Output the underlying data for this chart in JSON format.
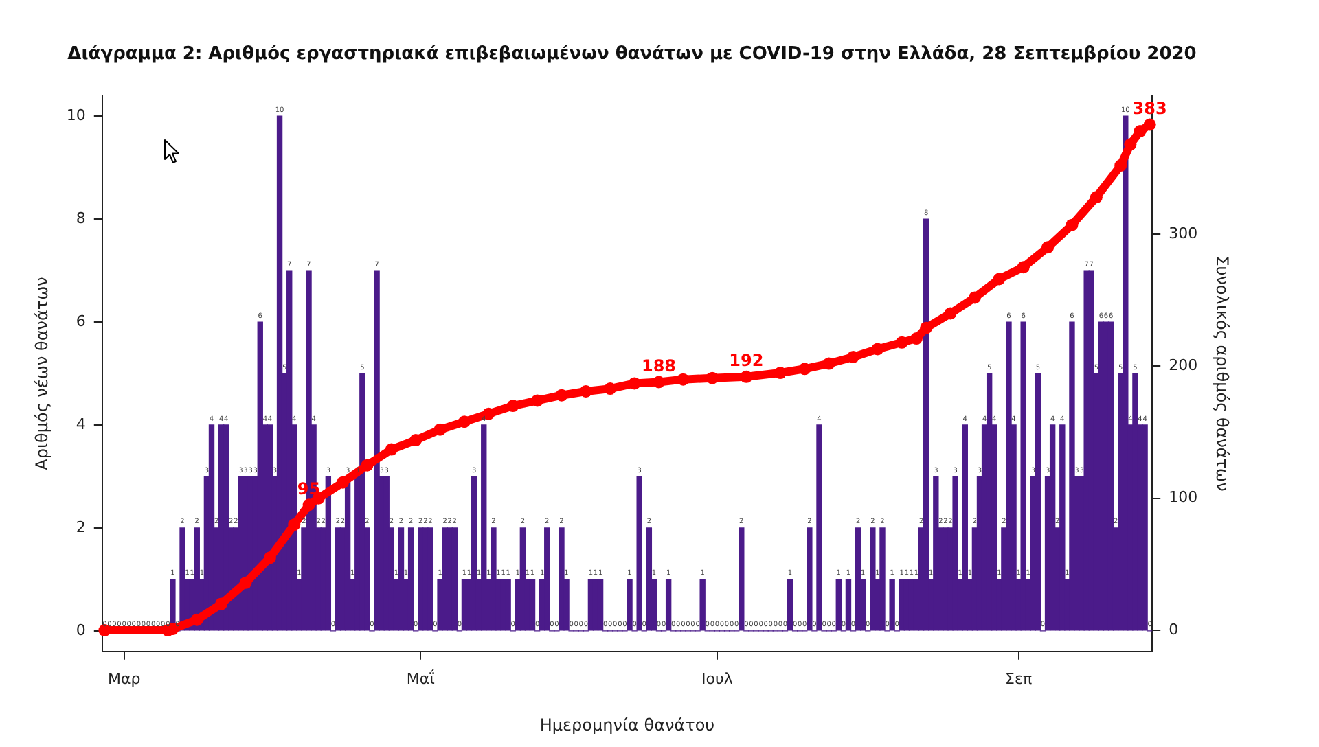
{
  "chart_data": {
    "type": "bar",
    "title": "Διάγραμμα 2: Αριθμός εργαστηριακά επιβεβαιωμένων θανάτων με COVID-19 στην Ελλάδα, 28 Σεπτεμβρίου 2020",
    "xlabel": "Ημερομηνία θανάτου",
    "ylabel": "Αριθμός νέων θανάτων",
    "y2label": "Συνολικός αριθμός θανάτων",
    "categories": [
      null,
      null,
      null,
      null,
      "Μαρ",
      null,
      null,
      null,
      null,
      null,
      null,
      null,
      null,
      null,
      null,
      null,
      null,
      null,
      null,
      null,
      null,
      null,
      null,
      null,
      null,
      null,
      null,
      null,
      null,
      null,
      null,
      null,
      null,
      null,
      null,
      null,
      null,
      null,
      null,
      null,
      null,
      null,
      null,
      null,
      null,
      null,
      null,
      null,
      null,
      null,
      null,
      null,
      null,
      null,
      null,
      null,
      null,
      null,
      null,
      null,
      null,
      null,
      null,
      null,
      null,
      "Μαΐ",
      null,
      null,
      null,
      null,
      null,
      null,
      null,
      null,
      null,
      null,
      null,
      null,
      null,
      null,
      null,
      null,
      null,
      null,
      null,
      null,
      null,
      null,
      null,
      null,
      null,
      null,
      null,
      null,
      null,
      null,
      null,
      null,
      null,
      null,
      null,
      null,
      null,
      null,
      null,
      null,
      null,
      null,
      null,
      null,
      null,
      null,
      null,
      null,
      null,
      null,
      null,
      null,
      null,
      null,
      null,
      null,
      null,
      null,
      null,
      null,
      "Ιουλ",
      null,
      null,
      null,
      null,
      null,
      null,
      null,
      null,
      null,
      null,
      null,
      null,
      null,
      null,
      null,
      null,
      null,
      null,
      null,
      null,
      null,
      null,
      null,
      null,
      null,
      null,
      null,
      null,
      null,
      null,
      null,
      null,
      null,
      null,
      null,
      null,
      null,
      null,
      null,
      null,
      null,
      null,
      null,
      null,
      null,
      null,
      null,
      null,
      null,
      null,
      null,
      null,
      null,
      null,
      null,
      null,
      null,
      null,
      null,
      null,
      null,
      "Σεπ",
      null,
      null,
      null,
      null,
      null,
      null,
      null,
      null,
      null,
      null,
      null,
      null,
      null,
      null,
      null,
      null,
      null,
      null,
      null,
      null,
      null,
      null,
      null,
      null,
      null,
      null,
      null
    ],
    "series": [
      {
        "color": "#4b1b8a",
        "values": [
          0,
          0,
          0,
          0,
          0,
          0,
          0,
          0,
          0,
          0,
          0,
          0,
          0,
          0,
          1,
          0,
          2,
          1,
          1,
          2,
          1,
          3,
          4,
          2,
          4,
          4,
          2,
          2,
          3,
          3,
          3,
          3,
          6,
          4,
          4,
          3,
          10,
          5,
          7,
          4,
          1,
          2,
          7,
          4,
          2,
          2,
          3,
          0,
          2,
          2,
          3,
          1,
          3,
          5,
          2,
          0,
          7,
          3,
          3,
          2,
          1,
          2,
          1,
          2,
          0,
          2,
          2,
          2,
          0,
          1,
          2,
          2,
          2,
          0,
          1,
          1,
          3,
          1,
          4,
          1,
          2,
          1,
          1,
          1,
          0,
          1,
          2,
          1,
          1,
          0,
          1,
          2,
          0,
          0,
          2,
          1,
          0,
          0,
          0,
          0,
          1,
          1,
          1,
          0,
          0,
          0,
          0,
          0,
          1,
          0,
          3,
          0,
          2,
          1,
          0,
          0,
          1,
          0,
          0,
          0,
          0,
          0,
          0,
          1,
          0,
          0,
          0,
          0,
          0,
          0,
          0,
          2,
          0,
          0,
          0,
          0,
          0,
          0,
          0,
          0,
          0,
          1,
          0,
          0,
          0,
          2,
          0,
          4,
          0,
          0,
          0,
          1,
          0,
          1,
          0,
          2,
          1,
          0,
          2,
          1,
          2,
          0,
          1,
          0,
          1,
          1,
          1,
          1,
          2,
          8,
          1,
          3,
          2,
          2,
          2,
          3,
          1,
          4,
          1,
          2,
          3,
          4,
          5,
          4,
          1,
          2,
          6,
          4,
          1,
          6,
          1,
          3,
          5,
          0,
          3,
          4,
          2,
          4,
          1,
          6,
          3,
          3,
          7,
          7,
          5,
          6,
          6,
          6,
          2,
          5,
          10,
          4,
          5,
          4,
          4,
          0
        ]
      },
      {
        "type": "line",
        "axis": "y2",
        "color": "#ff0000",
        "marker": "circle",
        "values": [
          0,
          null,
          null,
          null,
          null,
          null,
          null,
          null,
          null,
          null,
          null,
          null,
          null,
          0,
          1,
          null,
          null,
          null,
          null,
          8,
          null,
          null,
          null,
          null,
          20,
          null,
          null,
          null,
          null,
          36,
          null,
          null,
          null,
          null,
          55,
          null,
          null,
          null,
          null,
          80,
          null,
          null,
          95,
          null,
          100,
          null,
          null,
          null,
          null,
          112,
          null,
          null,
          null,
          null,
          125,
          null,
          null,
          null,
          null,
          137,
          null,
          null,
          null,
          null,
          144,
          null,
          null,
          null,
          null,
          152,
          null,
          null,
          null,
          null,
          158,
          null,
          null,
          null,
          null,
          164,
          null,
          null,
          null,
          null,
          170,
          null,
          null,
          null,
          null,
          174,
          null,
          null,
          null,
          null,
          178,
          null,
          null,
          null,
          null,
          181,
          null,
          null,
          null,
          null,
          183,
          null,
          null,
          null,
          null,
          187,
          null,
          null,
          null,
          null,
          188,
          null,
          null,
          null,
          null,
          190,
          null,
          null,
          null,
          null,
          null,
          191,
          null,
          null,
          null,
          null,
          null,
          null,
          192,
          null,
          null,
          null,
          null,
          null,
          null,
          195,
          null,
          null,
          null,
          null,
          198,
          null,
          null,
          null,
          null,
          202,
          null,
          null,
          null,
          null,
          207,
          null,
          null,
          null,
          null,
          213,
          null,
          null,
          null,
          null,
          218,
          null,
          null,
          221,
          null,
          229,
          null,
          null,
          null,
          null,
          240,
          null,
          null,
          null,
          null,
          252,
          null,
          null,
          null,
          null,
          266,
          null,
          null,
          null,
          null,
          275,
          null,
          null,
          null,
          null,
          290,
          null,
          null,
          null,
          null,
          307,
          null,
          null,
          null,
          null,
          328,
          null,
          null,
          null,
          null,
          352,
          null,
          368,
          null,
          378,
          null,
          383
        ],
        "value_labels": [
          null,
          null,
          null,
          null,
          null,
          null,
          null,
          null,
          null,
          null,
          null,
          null,
          null,
          null,
          null,
          null,
          null,
          null,
          null,
          null,
          null,
          null,
          null,
          null,
          null,
          null,
          null,
          null,
          null,
          null,
          null,
          null,
          null,
          null,
          null,
          null,
          null,
          null,
          null,
          null,
          null,
          null,
          "95",
          null,
          null,
          null,
          null,
          null,
          null,
          null,
          null,
          null,
          null,
          null,
          null,
          null,
          null,
          null,
          null,
          null,
          null,
          null,
          null,
          null,
          null,
          null,
          null,
          null,
          null,
          null,
          null,
          null,
          null,
          null,
          null,
          null,
          null,
          null,
          null,
          null,
          null,
          null,
          null,
          null,
          null,
          null,
          null,
          null,
          null,
          null,
          null,
          null,
          null,
          null,
          null,
          null,
          null,
          null,
          null,
          null,
          null,
          null,
          null,
          null,
          null,
          null,
          null,
          null,
          null,
          null,
          null,
          null,
          null,
          null,
          "188",
          null,
          null,
          null,
          null,
          null,
          null,
          null,
          null,
          null,
          null,
          null,
          null,
          null,
          null,
          null,
          null,
          null,
          "192",
          null,
          null,
          null,
          null,
          null,
          null,
          null,
          null,
          null,
          null,
          null,
          null,
          null,
          null,
          null,
          null,
          null,
          null,
          null,
          null,
          null,
          null,
          null,
          null,
          null,
          null,
          null,
          null,
          null,
          null,
          null,
          null,
          null,
          null,
          null,
          null,
          null,
          null,
          null,
          null,
          null,
          null,
          null,
          null,
          null,
          null,
          null,
          null,
          null,
          null,
          null,
          null,
          null,
          null,
          null,
          null,
          null,
          null,
          null,
          null,
          null,
          null,
          null,
          null,
          null,
          null,
          null,
          null,
          null,
          null,
          null,
          null,
          null,
          null,
          null,
          null,
          null,
          null,
          null,
          null,
          null,
          null,
          "383"
        ]
      }
    ],
    "data_labels": true,
    "ylim": [
      -0.4,
      10.4
    ],
    "yticks": [
      0,
      2,
      4,
      6,
      8,
      10
    ],
    "y2lim": [
      -16,
      405
    ],
    "y2ticks": [
      0,
      100,
      200,
      300
    ],
    "grid": false
  }
}
